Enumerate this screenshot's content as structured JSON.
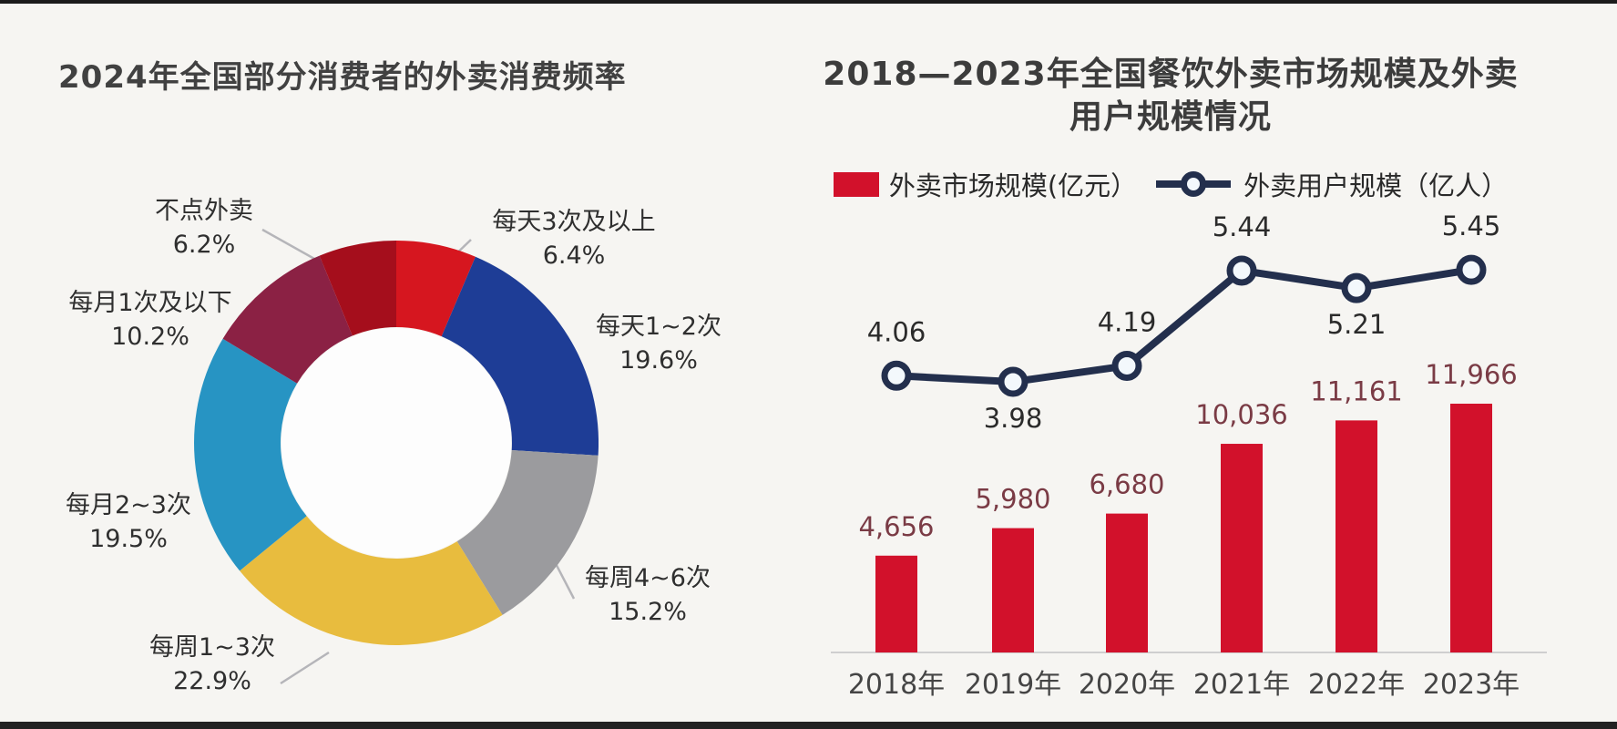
{
  "left_chart": {
    "title": "2024年全国部分消费者的外卖消费频率",
    "chart_data": {
      "type": "pie",
      "donut": true,
      "start_angle_deg": 0,
      "direction": "clockwise",
      "segments": [
        {
          "label": "每天3次及以上",
          "value": 6.4,
          "value_label": "6.4%",
          "color": "#d6161f"
        },
        {
          "label": "每天1~2次",
          "value": 19.6,
          "value_label": "19.6%",
          "color": "#1e3d96"
        },
        {
          "label": "每周4~6次",
          "value": 15.2,
          "value_label": "15.2%",
          "color": "#9b9b9e"
        },
        {
          "label": "每周1~3次",
          "value": 22.9,
          "value_label": "22.9%",
          "color": "#e8bc3e"
        },
        {
          "label": "每月2~3次",
          "value": 19.5,
          "value_label": "19.5%",
          "color": "#2794c3"
        },
        {
          "label": "每月1次及以下",
          "value": 10.2,
          "value_label": "10.2%",
          "color": "#8b2144"
        },
        {
          "label": "不点外卖",
          "value": 6.2,
          "value_label": "6.2%",
          "color": "#a50e1c"
        }
      ],
      "hole_color": "#fdfdfd"
    }
  },
  "right_chart": {
    "title_line1": "2018—2023年全国餐饮外卖市场规模及外卖",
    "title_line2": "用户规模情况",
    "legend": {
      "bar_label": "外卖市场规模(亿元）",
      "line_label": "外卖用户规模（亿人）"
    },
    "chart_data": {
      "type": "bar+line",
      "categories": [
        "2018年",
        "2019年",
        "2020年",
        "2021年",
        "2022年",
        "2023年"
      ],
      "series": [
        {
          "name": "外卖市场规模(亿元)",
          "type": "bar",
          "values": [
            4656,
            5980,
            6680,
            10036,
            11161,
            11966
          ],
          "labels": [
            "4,656",
            "5,980",
            "6,680",
            "10,036",
            "11,161",
            "11,966"
          ],
          "color": "#d2112b"
        },
        {
          "name": "外卖用户规模(亿人)",
          "type": "line",
          "values": [
            4.06,
            3.98,
            4.19,
            5.44,
            5.21,
            5.45
          ],
          "labels": [
            "4.06",
            "3.98",
            "4.19",
            "5.44",
            "5.21",
            "5.45"
          ],
          "label_positions": [
            "above",
            "below",
            "above",
            "above",
            "below",
            "above"
          ],
          "color": "#232f4d",
          "marker_fill": "#f3f8fc"
        }
      ],
      "axis_color": "#cfcfcf",
      "grid": false,
      "legend_position": "top"
    }
  }
}
